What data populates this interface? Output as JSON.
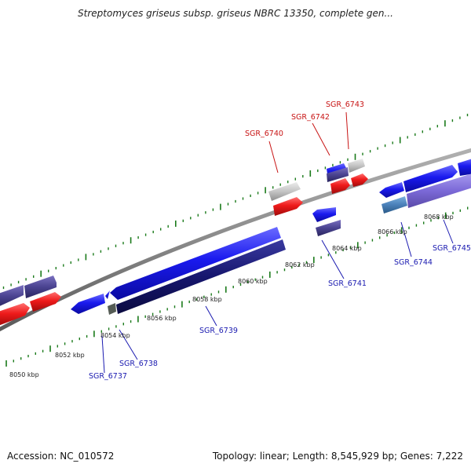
{
  "title": "Streptomyces griseus subsp. griseus NBRC 13350, complete gen...",
  "footer": {
    "accession": "Accession: NC_010572",
    "summary": "Topology: linear; Length: 8,545,929 bp; Genes: 7,222"
  },
  "kbp_labels": [
    "8050 kbp",
    "8052 kbp",
    "8054 kbp",
    "8056 kbp",
    "8058 kbp",
    "8060 kbp",
    "8062 kbp",
    "8064 kbp",
    "8066 kbp",
    "8068 kbp"
  ],
  "gene_labels": {
    "sgr_6737": "SGR_6737",
    "sgr_6738": "SGR_6738",
    "sgr_6739": "SGR_6739",
    "sgr_6740": "SGR_6740",
    "sgr_6741": "SGR_6741",
    "sgr_6742": "SGR_6742",
    "sgr_6743": "SGR_6743",
    "sgr_6744": "SGR_6744",
    "sgr_6745": "SGR_6745"
  },
  "colors": {
    "backbone": "#8c8c8c",
    "tick": "#1a7a1a",
    "forward_gene": "#1515e8",
    "reverse_gene": "#e81515",
    "label_forward": "#1a1ab0",
    "label_reverse": "#c81414",
    "navy": "#1a1a6e",
    "slate": "#4a4390",
    "grey_gene": "#c4c4c4"
  }
}
